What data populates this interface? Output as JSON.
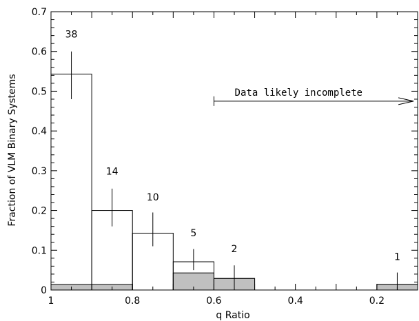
{
  "chart_data": {
    "type": "bar",
    "xlabel": "q Ratio",
    "ylabel": "Fraction of VLM Binary Systems",
    "xlim": [
      1.0,
      0.1
    ],
    "ylim": [
      0,
      0.7
    ],
    "x_axis_reversed": true,
    "x_ticks": [
      1,
      0.8,
      0.6,
      0.4,
      0.2
    ],
    "x_tick_labels": [
      "1",
      "0.8",
      "0.6",
      "0.4",
      "0.2"
    ],
    "y_ticks": [
      0,
      0.1,
      0.2,
      0.3,
      0.4,
      0.5,
      0.6,
      0.7
    ],
    "y_tick_labels": [
      "0",
      "0.1",
      "0.2",
      "0.3",
      "0.4",
      "0.5",
      "0.6",
      "0.7"
    ],
    "bin_edges": [
      1.0,
      0.9,
      0.8,
      0.7,
      0.6,
      0.5,
      0.4,
      0.3,
      0.2,
      0.1
    ],
    "series": [
      {
        "style": "outline",
        "values": [
          0.543,
          0.2,
          0.143,
          0.071,
          0.029,
          0,
          0,
          0,
          0.014
        ],
        "error_bars": [
          {
            "bin": 0,
            "low": 0.48,
            "high": 0.6
          },
          {
            "bin": 1,
            "low": 0.16,
            "high": 0.255
          },
          {
            "bin": 2,
            "low": 0.11,
            "high": 0.195
          },
          {
            "bin": 3,
            "low": 0.05,
            "high": 0.103
          },
          {
            "bin": 4,
            "low": 0.0,
            "high": 0.062
          },
          {
            "bin": 8,
            "low": 0.0,
            "high": 0.044
          }
        ],
        "count_labels": [
          {
            "bin": 0,
            "text": "38",
            "y": 0.635
          },
          {
            "bin": 1,
            "text": "14",
            "y": 0.29
          },
          {
            "bin": 2,
            "text": "10",
            "y": 0.225
          },
          {
            "bin": 3,
            "text": "5",
            "y": 0.135
          },
          {
            "bin": 4,
            "text": "2",
            "y": 0.095
          },
          {
            "bin": 8,
            "text": "1",
            "y": 0.075
          }
        ]
      },
      {
        "style": "filled",
        "color": "#c0c0c0",
        "values": [
          0.014,
          0.014,
          0,
          0.043,
          0.029,
          0,
          0,
          0,
          0.014
        ]
      }
    ],
    "annotation": {
      "text": "Data likely incomplete",
      "y": 0.475,
      "arrow_from_x": 0.6,
      "arrow_to_x": 0.11
    }
  }
}
